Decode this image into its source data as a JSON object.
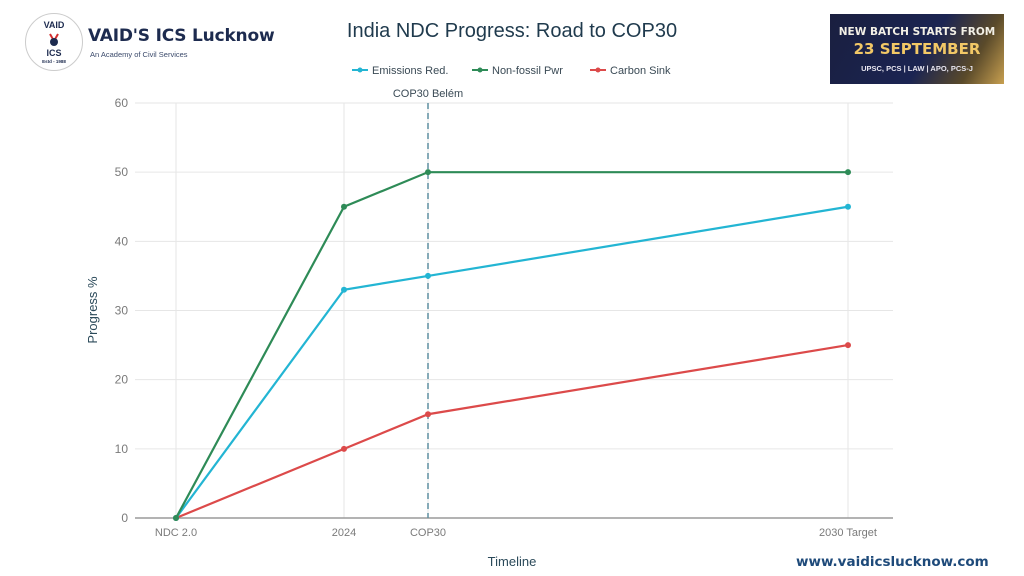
{
  "branding": {
    "logo_top": "VAID",
    "logo_bottom": "ICS",
    "logo_estd": "Estd - 1988",
    "name": "VAID'S ICS Lucknow",
    "tagline": "An Academy of Civil Services",
    "website": "www.vaidicslucknow.com"
  },
  "banner": {
    "line1": "NEW BATCH STARTS FROM",
    "line2": "23 SEPTEMBER",
    "line3": "UPSC, PCS | LAW | APO, PCS-J"
  },
  "chart_data": {
    "type": "line",
    "title": "India NDC Progress: Road to COP30",
    "xlabel": "Timeline",
    "ylabel": "Progress %",
    "categories": [
      "NDC 2.0",
      "2024",
      "COP30",
      "2030 Target"
    ],
    "x_positions": [
      0,
      2,
      3,
      8
    ],
    "ylim": [
      0,
      60
    ],
    "yticks": [
      0,
      10,
      20,
      30,
      40,
      50,
      60
    ],
    "grid": true,
    "legend_position": "top-center",
    "series": [
      {
        "name": "Emissions Red.",
        "color": "#23b5d3",
        "values": [
          0,
          33,
          35,
          45
        ]
      },
      {
        "name": "Non-fossil Pwr",
        "color": "#2e8b57",
        "values": [
          0,
          45,
          50,
          50
        ]
      },
      {
        "name": "Carbon Sink",
        "color": "#dc4a4a",
        "values": [
          0,
          10,
          15,
          25
        ]
      }
    ],
    "annotations": [
      {
        "type": "vline",
        "x_category": "COP30",
        "label": "COP30 Belém",
        "color": "#5f8fa0",
        "style": "dashed"
      }
    ]
  }
}
